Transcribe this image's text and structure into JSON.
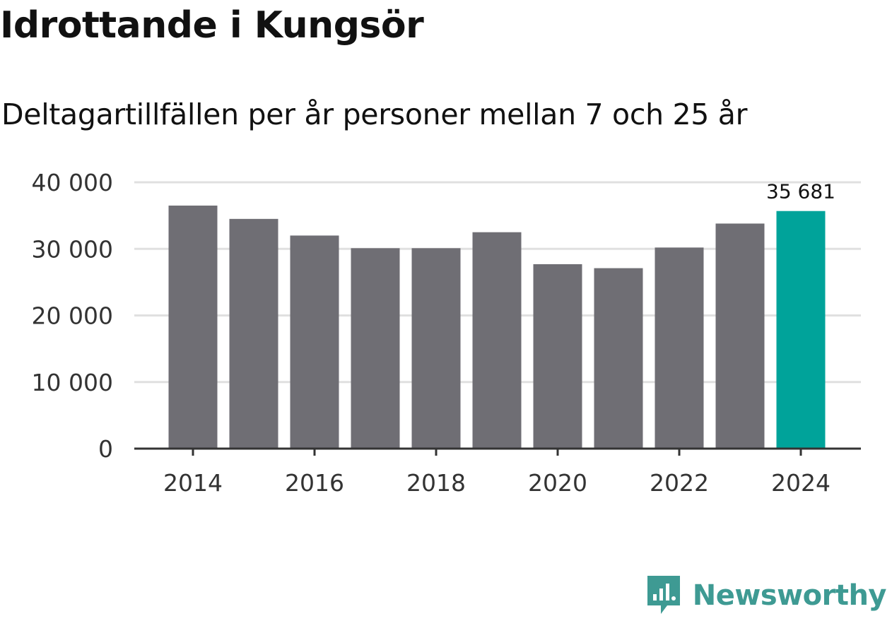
{
  "title": "Idrottande i Kungsör",
  "subtitle": "Deltagartillfällen per år personer mellan 7 och 25 år",
  "brand": {
    "name": "Newsworthy",
    "logo_icon": "bar-chart-speech-bubble-icon",
    "color": "#3e9a93"
  },
  "colors": {
    "bar": "#6f6e74",
    "highlight": "#00a39a",
    "grid": "#e0e0e0",
    "axis": "#333333"
  },
  "chart_data": {
    "type": "bar",
    "title": "Idrottande i Kungsör",
    "subtitle": "Deltagartillfällen per år personer mellan 7 och 25 år",
    "xlabel": "",
    "ylabel": "",
    "categories": [
      "2014",
      "2015",
      "2016",
      "2017",
      "2018",
      "2019",
      "2020",
      "2021",
      "2022",
      "2023",
      "2024"
    ],
    "values": [
      36500,
      34500,
      32000,
      30100,
      30100,
      32500,
      27700,
      27100,
      30200,
      33800,
      35681
    ],
    "highlight_index": 10,
    "highlight_label": "35 681",
    "ylim": [
      0,
      40000
    ],
    "y_ticks": [
      0,
      10000,
      20000,
      30000,
      40000
    ],
    "y_tick_labels": [
      "0",
      "10 000",
      "20 000",
      "30 000",
      "40 000"
    ],
    "x_tick_labels": [
      "2014",
      "2016",
      "2018",
      "2020",
      "2022",
      "2024"
    ],
    "grid": true,
    "legend": "none"
  }
}
